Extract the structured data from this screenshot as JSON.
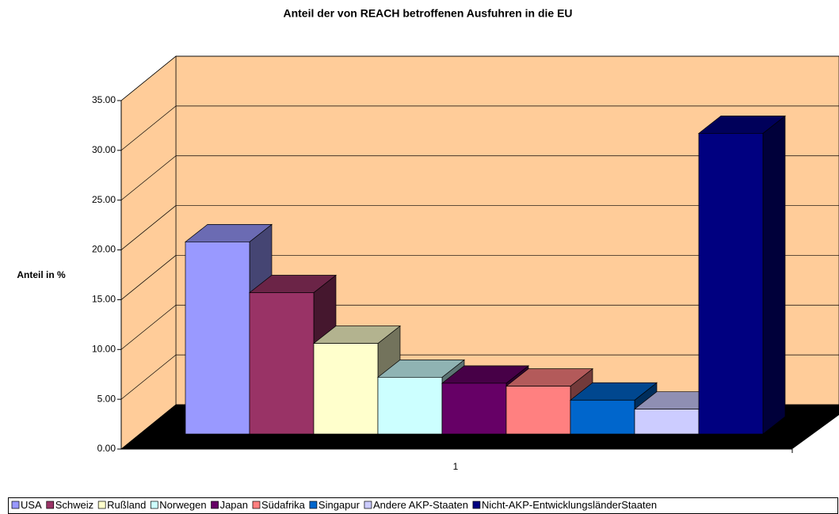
{
  "chart_data": {
    "type": "bar3d",
    "title": "Anteil der von REACH betroffenen Ausfuhren in die EU",
    "y_label": "Anteil in %",
    "categories": [
      "1"
    ],
    "series": [
      {
        "name": "USA",
        "color": "#9999ff",
        "values": [
          19.3
        ]
      },
      {
        "name": "Schweiz",
        "color": "#993366",
        "values": [
          14.2
        ]
      },
      {
        "name": "Rußland",
        "color": "#ffffcc",
        "values": [
          9.1
        ]
      },
      {
        "name": "Norwegen",
        "color": "#ccffff",
        "values": [
          5.7
        ]
      },
      {
        "name": "Japan",
        "color": "#660066",
        "values": [
          5.1
        ]
      },
      {
        "name": "Südafrika",
        "color": "#ff8080",
        "values": [
          4.8
        ]
      },
      {
        "name": "Singapur",
        "color": "#0066cc",
        "values": [
          3.4
        ]
      },
      {
        "name": "Andere AKP-Staaten",
        "color": "#ccccff",
        "values": [
          2.5
        ]
      },
      {
        "name": "Nicht-AKP-EntwicklungsländerStaaten",
        "color": "#000080",
        "values": [
          30.2
        ]
      }
    ],
    "ylim": [
      0,
      35
    ],
    "yticks": [
      {
        "value": 0,
        "label": "0.00"
      },
      {
        "value": 5,
        "label": "5.00"
      },
      {
        "value": 10,
        "label": "10.00"
      },
      {
        "value": 15,
        "label": "15.00"
      },
      {
        "value": 20,
        "label": "20.00"
      },
      {
        "value": 25,
        "label": "25.00"
      },
      {
        "value": 30,
        "label": "30.00"
      },
      {
        "value": 35,
        "label": "35.00"
      }
    ],
    "grid": true,
    "wall_color": "#ffcc99",
    "floor_color": "#000000",
    "legend": "bottom"
  }
}
